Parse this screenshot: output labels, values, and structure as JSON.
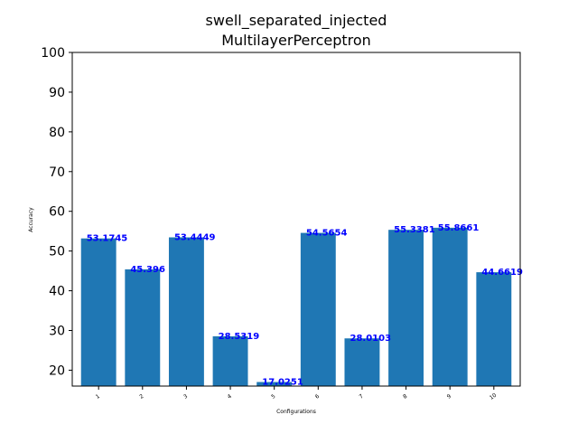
{
  "chart_data": {
    "type": "bar",
    "title": "swell_separated_injected",
    "subtitle": "MultilayerPerceptron",
    "xlabel": "Configurations",
    "ylabel": "Accuracy",
    "categories": [
      "1",
      "2",
      "3",
      "4",
      "5",
      "6",
      "7",
      "8",
      "9",
      "10"
    ],
    "values": [
      53.1745,
      45.396,
      53.4449,
      28.5319,
      17.0251,
      54.5654,
      28.0103,
      55.3381,
      55.8661,
      44.6619
    ],
    "data_labels": [
      "53.1745",
      "45.396",
      "53.4449",
      "28.5319",
      "17.0251",
      "54.5654",
      "28.0103",
      "55.3381",
      "55.8661",
      "44.6619"
    ],
    "ylim": [
      16,
      100
    ],
    "yticks": [
      20,
      30,
      40,
      50,
      60,
      70,
      80,
      90,
      100
    ],
    "ytick_labels": [
      "20",
      "30",
      "40",
      "50",
      "60",
      "70",
      "80",
      "90",
      "100"
    ],
    "grid": false,
    "bar_color": "#1f77b4",
    "label_color": "#0000ff"
  }
}
